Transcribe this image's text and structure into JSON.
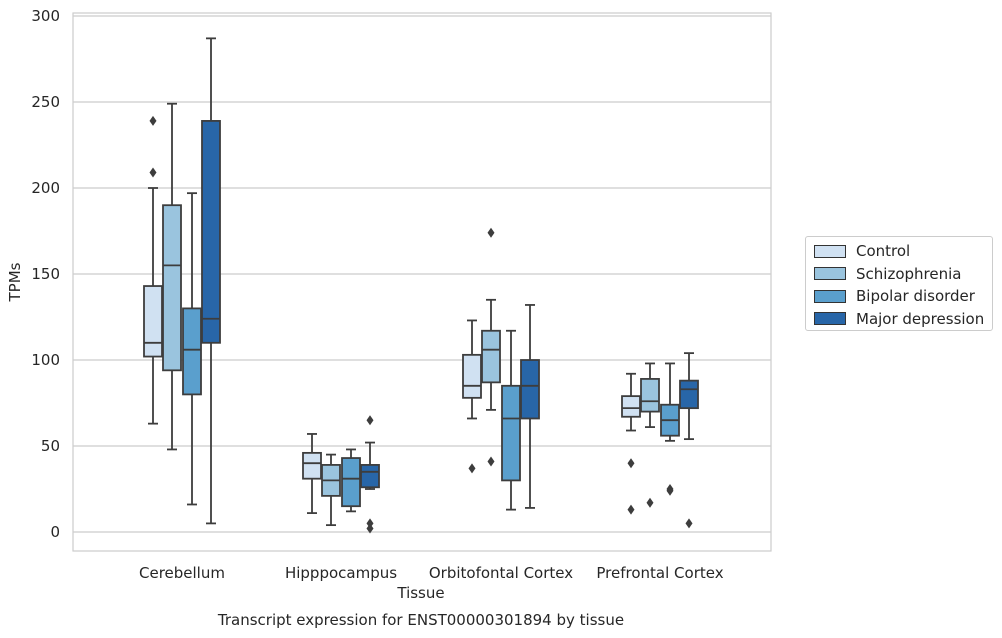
{
  "chart_data": {
    "type": "box",
    "title": "",
    "xlabel": "Tissue",
    "ylabel": "TPMs",
    "caption": "Transcript expression for ENST00000301894 by tissue",
    "ylim": [
      -12,
      302
    ],
    "yticks": [
      0,
      50,
      100,
      150,
      200,
      250,
      300
    ],
    "grid": "horizontal",
    "legend_position": "right",
    "categories": [
      "Cerebellum",
      "Hipppocampus",
      "Orbitofontal Cortex",
      "Prefrontal Cortex"
    ],
    "series": [
      {
        "name": "Control",
        "color": "#d0e1f2",
        "boxes": [
          {
            "whislo": 63,
            "q1": 102,
            "med": 110,
            "q3": 143,
            "whishi": 200,
            "fliers": [
              209,
              239
            ]
          },
          {
            "whislo": 11,
            "q1": 31,
            "med": 40,
            "q3": 46,
            "whishi": 57,
            "fliers": []
          },
          {
            "whislo": 66,
            "q1": 78,
            "med": 85,
            "q3": 103,
            "whishi": 123,
            "fliers": [
              37
            ]
          },
          {
            "whislo": 59,
            "q1": 67,
            "med": 72,
            "q3": 79,
            "whishi": 92,
            "fliers": [
              40,
              13
            ]
          }
        ]
      },
      {
        "name": "Schizophrenia",
        "color": "#9ac4de",
        "boxes": [
          {
            "whislo": 48,
            "q1": 94,
            "med": 155,
            "q3": 190,
            "whishi": 249,
            "fliers": []
          },
          {
            "whislo": 4,
            "q1": 21,
            "med": 30,
            "q3": 39,
            "whishi": 45,
            "fliers": []
          },
          {
            "whislo": 71,
            "q1": 87,
            "med": 106,
            "q3": 117,
            "whishi": 135,
            "fliers": [
              174,
              41
            ]
          },
          {
            "whislo": 61,
            "q1": 70,
            "med": 76,
            "q3": 89,
            "whishi": 98,
            "fliers": [
              17
            ]
          }
        ]
      },
      {
        "name": "Bipolar disorder",
        "color": "#5a9fcd",
        "boxes": [
          {
            "whislo": 16,
            "q1": 80,
            "med": 106,
            "q3": 130,
            "whishi": 197,
            "fliers": []
          },
          {
            "whislo": 12,
            "q1": 15,
            "med": 31,
            "q3": 43,
            "whishi": 48,
            "fliers": []
          },
          {
            "whislo": 13,
            "q1": 30,
            "med": 66,
            "q3": 85,
            "whishi": 117,
            "fliers": []
          },
          {
            "whislo": 53,
            "q1": 56,
            "med": 65,
            "q3": 74,
            "whishi": 98,
            "fliers": [
              25,
              24
            ]
          }
        ]
      },
      {
        "name": "Major depression",
        "color": "#2866a8",
        "boxes": [
          {
            "whislo": 5,
            "q1": 110,
            "med": 124,
            "q3": 239,
            "whishi": 287,
            "fliers": []
          },
          {
            "whislo": 25,
            "q1": 26,
            "med": 35,
            "q3": 39,
            "whishi": 52,
            "fliers": [
              65,
              5,
              2
            ]
          },
          {
            "whislo": 14,
            "q1": 66,
            "med": 85,
            "q3": 100,
            "whishi": 132,
            "fliers": []
          },
          {
            "whislo": 54,
            "q1": 72,
            "med": 83,
            "q3": 88,
            "whishi": 104,
            "fliers": [
              5
            ]
          }
        ]
      }
    ]
  }
}
